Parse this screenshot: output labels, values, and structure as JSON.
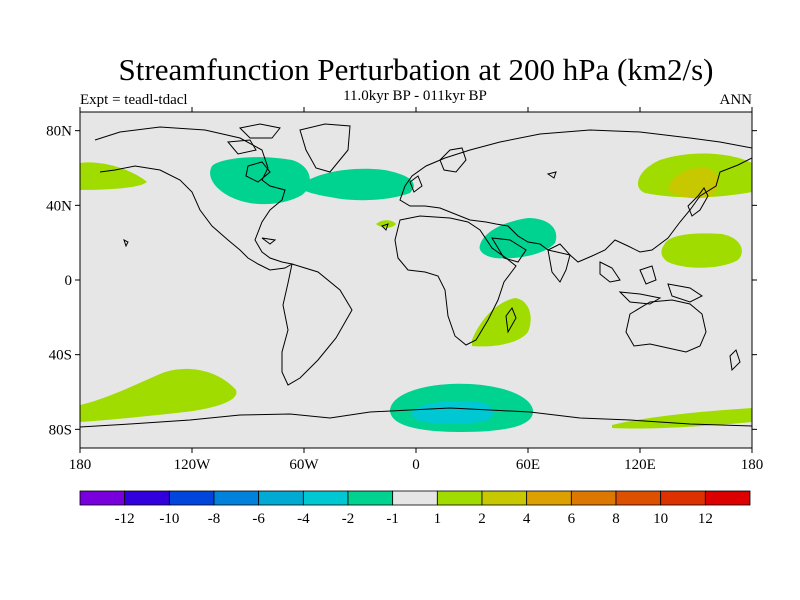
{
  "title": "Streamfunction Perturbation at 200 hPa (km2/s)",
  "subtitle": "11.0kyr BP - 011kyr BP",
  "left_label": "Expt = teadl-tdacl",
  "right_label": "ANN",
  "map": {
    "projection": "cylindrical equidistant",
    "lon_range": [
      -180,
      180
    ],
    "lat_range": [
      -90,
      90
    ],
    "background_color": "#e6e6e6",
    "lat_ticks": [
      "80N",
      "40N",
      "0",
      "40S",
      "80S"
    ],
    "lon_ticks": [
      "180",
      "120W",
      "60W",
      "0",
      "60E",
      "120E",
      "180"
    ],
    "regions": [
      {
        "name": "north-pacific-positive",
        "level": "1 to 2",
        "color": "#a0dc00"
      },
      {
        "name": "northeast-pacific-positive",
        "level": "1 to 2",
        "color": "#a0dc00"
      },
      {
        "name": "japan-core-positive",
        "level": "2 to 4",
        "color": "#c8c800"
      },
      {
        "name": "west-pacific-positive",
        "level": "1 to 2",
        "color": "#a0dc00"
      },
      {
        "name": "north-america-negative",
        "level": "-2 to -1",
        "color": "#00d290"
      },
      {
        "name": "north-atlantic-negative",
        "level": "-2 to -1",
        "color": "#00d290"
      },
      {
        "name": "arabia-negative",
        "level": "-2 to -1",
        "color": "#00d290"
      },
      {
        "name": "madagascar-positive",
        "level": "1 to 2",
        "color": "#a0dc00"
      },
      {
        "name": "south-pacific-positive",
        "level": "1 to 2",
        "color": "#a0dc00"
      },
      {
        "name": "antarctic-negative",
        "level": "-2 to -1",
        "color": "#00d290"
      },
      {
        "name": "antarctic-core-negative",
        "level": "-4 to -2",
        "color": "#00c8d2"
      },
      {
        "name": "southeast-indian-positive",
        "level": "1 to 2",
        "color": "#a0dc00"
      }
    ]
  },
  "colorbar": {
    "colors": [
      "#7800dc",
      "#3200dc",
      "#0046dc",
      "#0082dc",
      "#00aad2",
      "#00c8d2",
      "#00d290",
      "#e6e6e6",
      "#a0dc00",
      "#c8c800",
      "#dca000",
      "#dc7800",
      "#dc5000",
      "#dc3200",
      "#dc0000"
    ],
    "labels": [
      "-12",
      "-10",
      "-8",
      "-6",
      "-4",
      "-2",
      "-1",
      "1",
      "2",
      "4",
      "6",
      "8",
      "10",
      "12"
    ]
  }
}
